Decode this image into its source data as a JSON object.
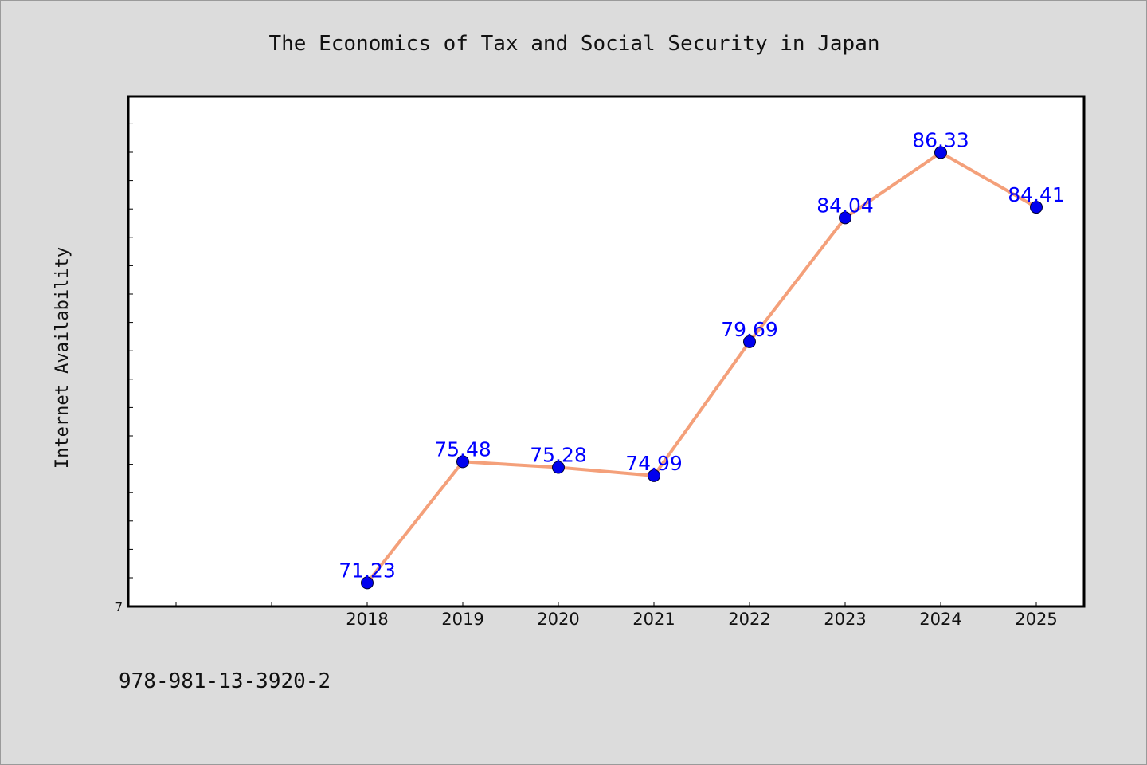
{
  "chart_data": {
    "type": "line",
    "title": "The Economics of Tax and Social Security in Japan",
    "xlabel": "",
    "ylabel": "Internet Availability",
    "categories": [
      "2018",
      "2019",
      "2020",
      "2021",
      "2022",
      "2023",
      "2024",
      "2025"
    ],
    "series": [
      {
        "values": [
          71.23,
          75.48,
          75.28,
          74.99,
          79.69,
          84.04,
          86.33,
          84.41
        ],
        "labels": [
          "71.23",
          "75.48",
          "75.28",
          "74.99",
          "79.69",
          "84.04",
          "86.33",
          "84.41"
        ]
      }
    ],
    "ylim": [
      70.4,
      88.3
    ],
    "ytick_labels": [
      "7"
    ],
    "grid": false,
    "legend": "none",
    "footer_text": "978-981-13-3920-2",
    "colors": {
      "background": "#dcdcdc",
      "plot_background": "#ffffff",
      "line": "#f4a07a",
      "marker": "#0000ee",
      "data_label": "#0000ff"
    }
  }
}
